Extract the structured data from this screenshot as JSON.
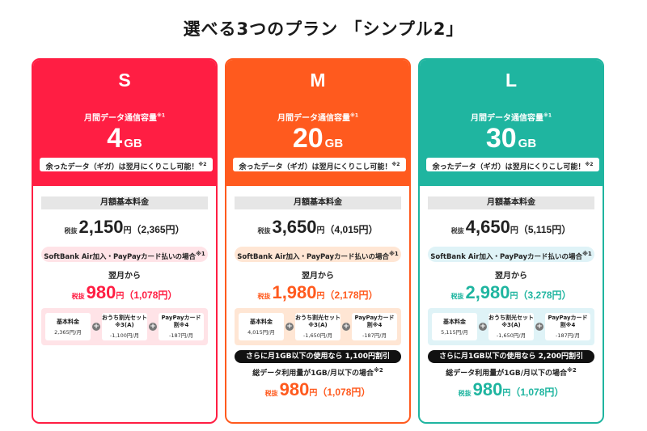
{
  "title": "選べる3つのプラン 「シンプル2」",
  "common": {
    "capacity_label": "月間データ通信容量",
    "capacity_note": "※1",
    "rollover": "余ったデータ（ギガ）は翌月にくりこし可能！",
    "rollover_note": "※2",
    "fee_label": "月額基本料金",
    "tax_excluded": "税抜",
    "yen": "円",
    "condition": "SoftBank Air加入・PayPayカード払いの場合",
    "condition_note": "※1",
    "from_next_month": "翌月から",
    "plus": "+"
  },
  "plans": [
    {
      "letter": "S",
      "capacity_num": "4",
      "capacity_unit": "GB",
      "base_price": "2,150",
      "base_incl": "（2,365円）",
      "discount_price": "980",
      "discount_incl": "（1,078円）",
      "breakdown": [
        {
          "name": "基本料金",
          "value": "2,365円/月"
        },
        {
          "name": "おうち割光セット※3(A)",
          "value": "-1,100円/月"
        },
        {
          "name": "PayPayカード割※4",
          "value": "-187円/月"
        }
      ],
      "colors": {
        "head": "#ff1e43",
        "pink": "#ffe3e7",
        "disc": "#ff1e43"
      }
    },
    {
      "letter": "M",
      "capacity_num": "20",
      "capacity_unit": "GB",
      "base_price": "3,650",
      "base_incl": "（4,015円）",
      "discount_price": "1,980",
      "discount_incl": "（2,178円）",
      "breakdown": [
        {
          "name": "基本料金",
          "value": "4,015円/月"
        },
        {
          "name": "おうち割光セット※3(A)",
          "value": "-1,650円/月"
        },
        {
          "name": "PayPayカード割※4",
          "value": "-187円/月"
        }
      ],
      "extra": {
        "badge": "さらに月1GB以下の使用なら 1,100円割引",
        "condition": "総データ利用量が1GB/月以下の場合",
        "condition_note": "※2",
        "price": "980",
        "incl": "（1,078円）"
      },
      "colors": {
        "head": "#ff5a1e",
        "pink": "#ffe6d4",
        "disc": "#ff5a1e"
      }
    },
    {
      "letter": "L",
      "capacity_num": "30",
      "capacity_unit": "GB",
      "base_price": "4,650",
      "base_incl": "（5,115円）",
      "discount_price": "2,980",
      "discount_incl": "（3,278円）",
      "breakdown": [
        {
          "name": "基本料金",
          "value": "5,115円/月"
        },
        {
          "name": "おうち割光セット※3(A)",
          "value": "-1,650円/月"
        },
        {
          "name": "PayPayカード割※4",
          "value": "-187円/月"
        }
      ],
      "extra": {
        "badge": "さらに月1GB以下の使用なら 2,200円割引",
        "condition": "総データ利用量が1GB/月以下の場合",
        "condition_note": "※2",
        "price": "980",
        "incl": "（1,078円）"
      },
      "colors": {
        "head": "#1fb5a0",
        "pink": "#dff3f7",
        "disc": "#1fb5a0"
      }
    }
  ]
}
